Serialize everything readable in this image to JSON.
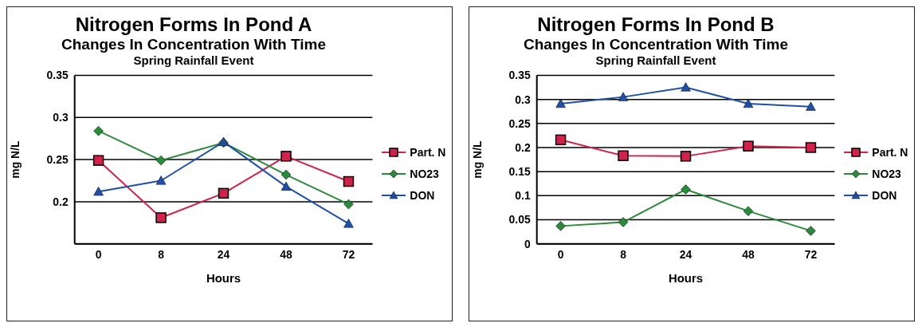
{
  "chart_data": [
    {
      "type": "line",
      "title": "Nitrogen Forms In Pond A",
      "subtitle": "Changes In Concentration With Time",
      "annotations": [
        "Spring Rainfall Event"
      ],
      "xlabel": "Hours",
      "ylabel": "mg N/L",
      "categories": [
        "0",
        "8",
        "24",
        "48",
        "72"
      ],
      "series": [
        {
          "name": "Part. N",
          "color": "#d0224a",
          "marker": "square",
          "values": [
            0.249,
            0.181,
            0.21,
            0.254,
            0.224
          ]
        },
        {
          "name": "NO23",
          "color": "#2a8a3a",
          "marker": "diamond",
          "values": [
            0.284,
            0.249,
            0.27,
            0.232,
            0.197
          ]
        },
        {
          "name": "DON",
          "color": "#1f4fa8",
          "marker": "triangle",
          "values": [
            0.212,
            0.225,
            0.271,
            0.218,
            0.174
          ]
        }
      ],
      "ylim": [
        0.15,
        0.35
      ],
      "yticks": [
        {
          "value": 0.15,
          "label": null
        },
        0.2,
        0.25,
        0.3,
        0.35
      ],
      "grid": "y",
      "legend": "right",
      "line_style": "solid"
    },
    {
      "type": "line",
      "title": "Nitrogen Forms In Pond B",
      "subtitle": "Changes In Concentration With Time",
      "annotations": [
        "Spring Rainfall Event"
      ],
      "xlabel": "Hours",
      "ylabel": "mg N/L",
      "categories": [
        "0",
        "8",
        "24",
        "48",
        "72"
      ],
      "series": [
        {
          "name": "Part. N",
          "color": "#d0224a",
          "marker": "square",
          "values": [
            0.216,
            0.183,
            0.182,
            0.203,
            0.2
          ]
        },
        {
          "name": "NO23",
          "color": "#2a8a3a",
          "marker": "diamond",
          "values": [
            0.037,
            0.045,
            0.113,
            0.068,
            0.027
          ]
        },
        {
          "name": "DON",
          "color": "#1f4fa8",
          "marker": "triangle",
          "values": [
            0.291,
            0.305,
            0.325,
            0.291,
            0.285
          ]
        }
      ],
      "ylim": [
        0,
        0.35
      ],
      "yticks": [
        0,
        0.05,
        0.1,
        0.15,
        0.2,
        0.25,
        0.3,
        0.35
      ],
      "grid": "y",
      "legend": "right",
      "line_style": "solid"
    }
  ]
}
